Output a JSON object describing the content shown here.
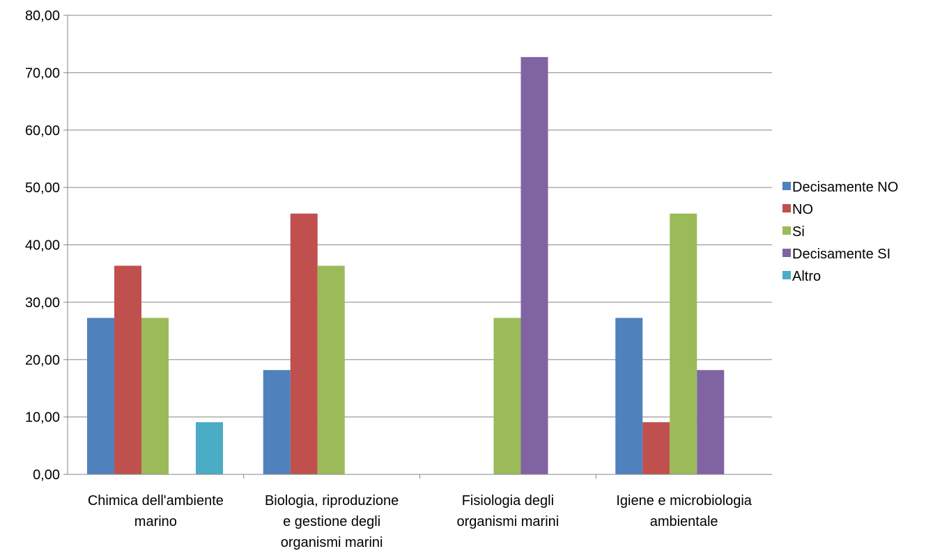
{
  "chart_data": {
    "type": "bar",
    "categories": [
      [
        "Chimica dell'ambiente",
        "marino"
      ],
      [
        "Biologia,  riproduzione",
        "e gestione degli",
        "organismi marini"
      ],
      [
        "Fisiologia degli",
        "organismi marini"
      ],
      [
        "Igiene e microbiologia",
        "ambientale"
      ]
    ],
    "series": [
      {
        "name": "Decisamente NO",
        "color": "#4F81BD",
        "values": [
          27.27,
          18.18,
          0,
          27.27
        ]
      },
      {
        "name": "NO",
        "color": "#C0504D",
        "values": [
          36.36,
          45.45,
          0,
          9.09
        ]
      },
      {
        "name": "Si",
        "color": "#9BBB59",
        "values": [
          27.27,
          36.36,
          27.27,
          45.45
        ]
      },
      {
        "name": "Decisamente SI",
        "color": "#8064A2",
        "values": [
          0,
          0,
          72.73,
          18.18
        ]
      },
      {
        "name": "Altro",
        "color": "#4BACC6",
        "values": [
          9.09,
          0,
          0,
          0
        ]
      }
    ],
    "yticks": [
      "0,00",
      "10,00",
      "20,00",
      "30,00",
      "40,00",
      "50,00",
      "60,00",
      "70,00",
      "80,00"
    ],
    "ylim": [
      0,
      80
    ],
    "grid": true,
    "legend_position": "right"
  }
}
